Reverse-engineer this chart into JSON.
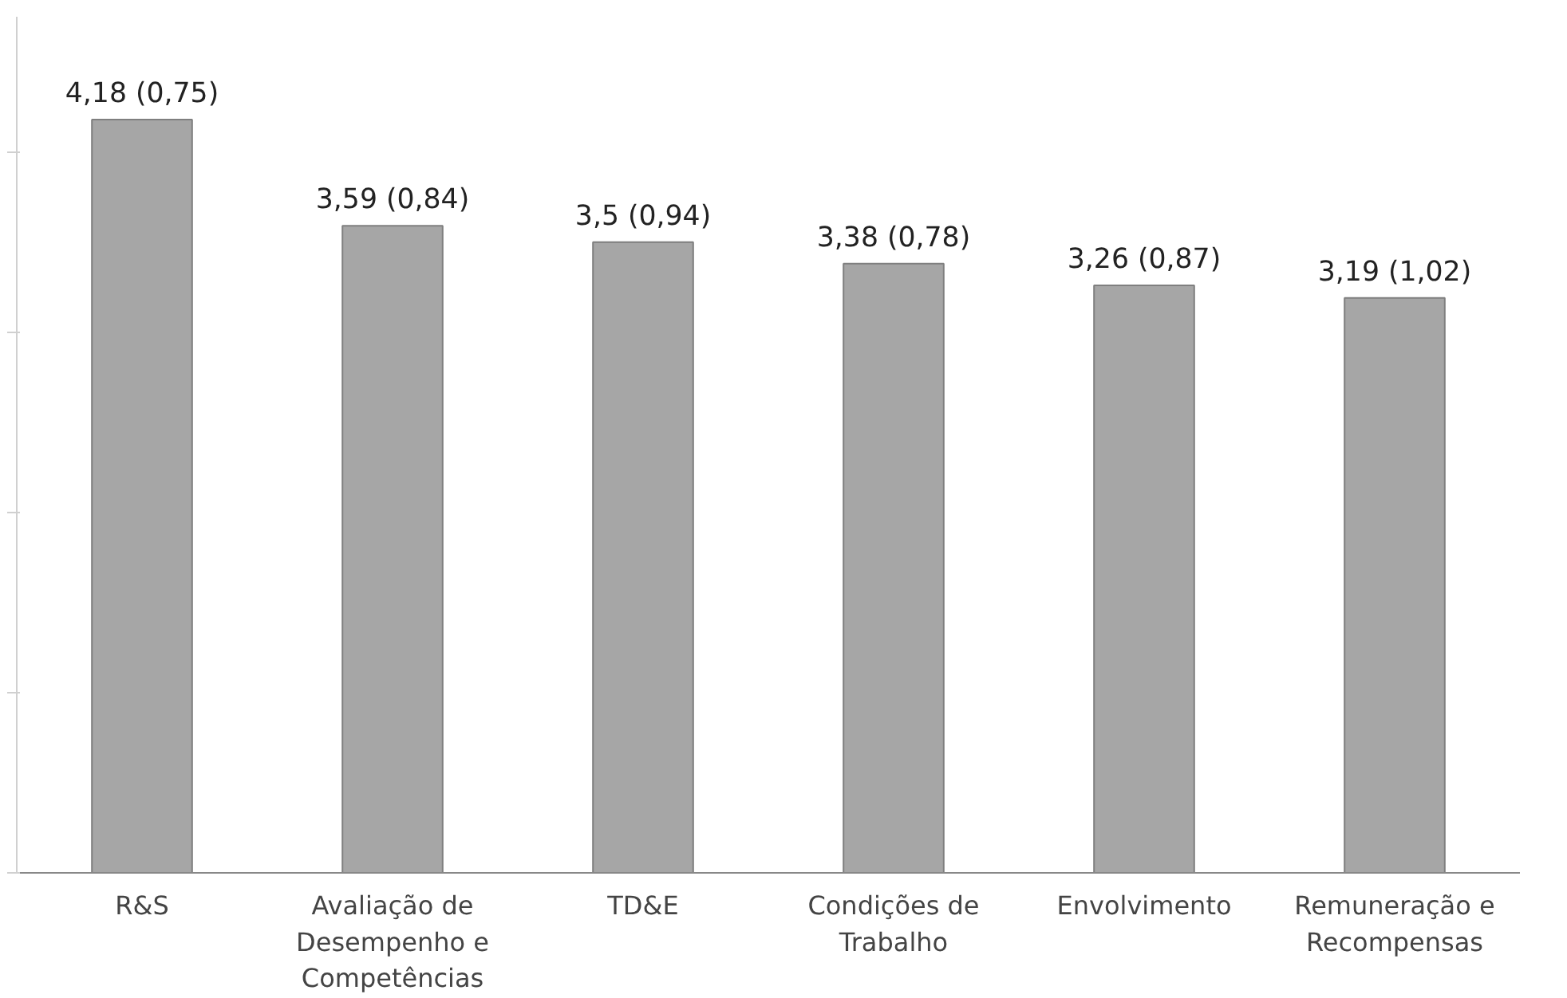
{
  "chart_data": {
    "type": "bar",
    "categories": [
      "R&S",
      "Avaliação de Desempenho e Competências",
      "TD&E",
      "Condições de Trabalho",
      "Envolvimento",
      "Remuneração e Recompensas"
    ],
    "values": [
      4.18,
      3.59,
      3.5,
      3.38,
      3.26,
      3.19
    ],
    "value_labels": [
      "4,18 (0,75)",
      "3,59 (0,84)",
      "3,5 (0,94)",
      "3,38 (0,78)",
      "3,26 (0,87)",
      "3,19 (1,02)"
    ],
    "color": "#a6a6a6",
    "ylim": [
      0,
      4.75
    ],
    "tick_labels": "x"
  }
}
